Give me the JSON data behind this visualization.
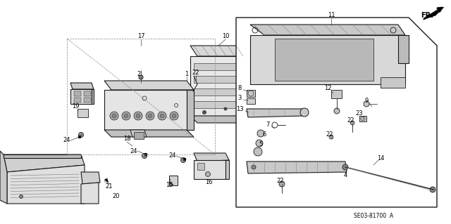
{
  "bg_color": "#ffffff",
  "line_color": "#000000",
  "part_number_text": "SE03-81700  A",
  "fr_label": "FR.",
  "fig_width": 6.4,
  "fig_height": 3.19,
  "dpi": 100,
  "gray_fill": "#b8b8b8",
  "light_gray": "#d8d8d8",
  "mid_gray": "#c0c0c0"
}
